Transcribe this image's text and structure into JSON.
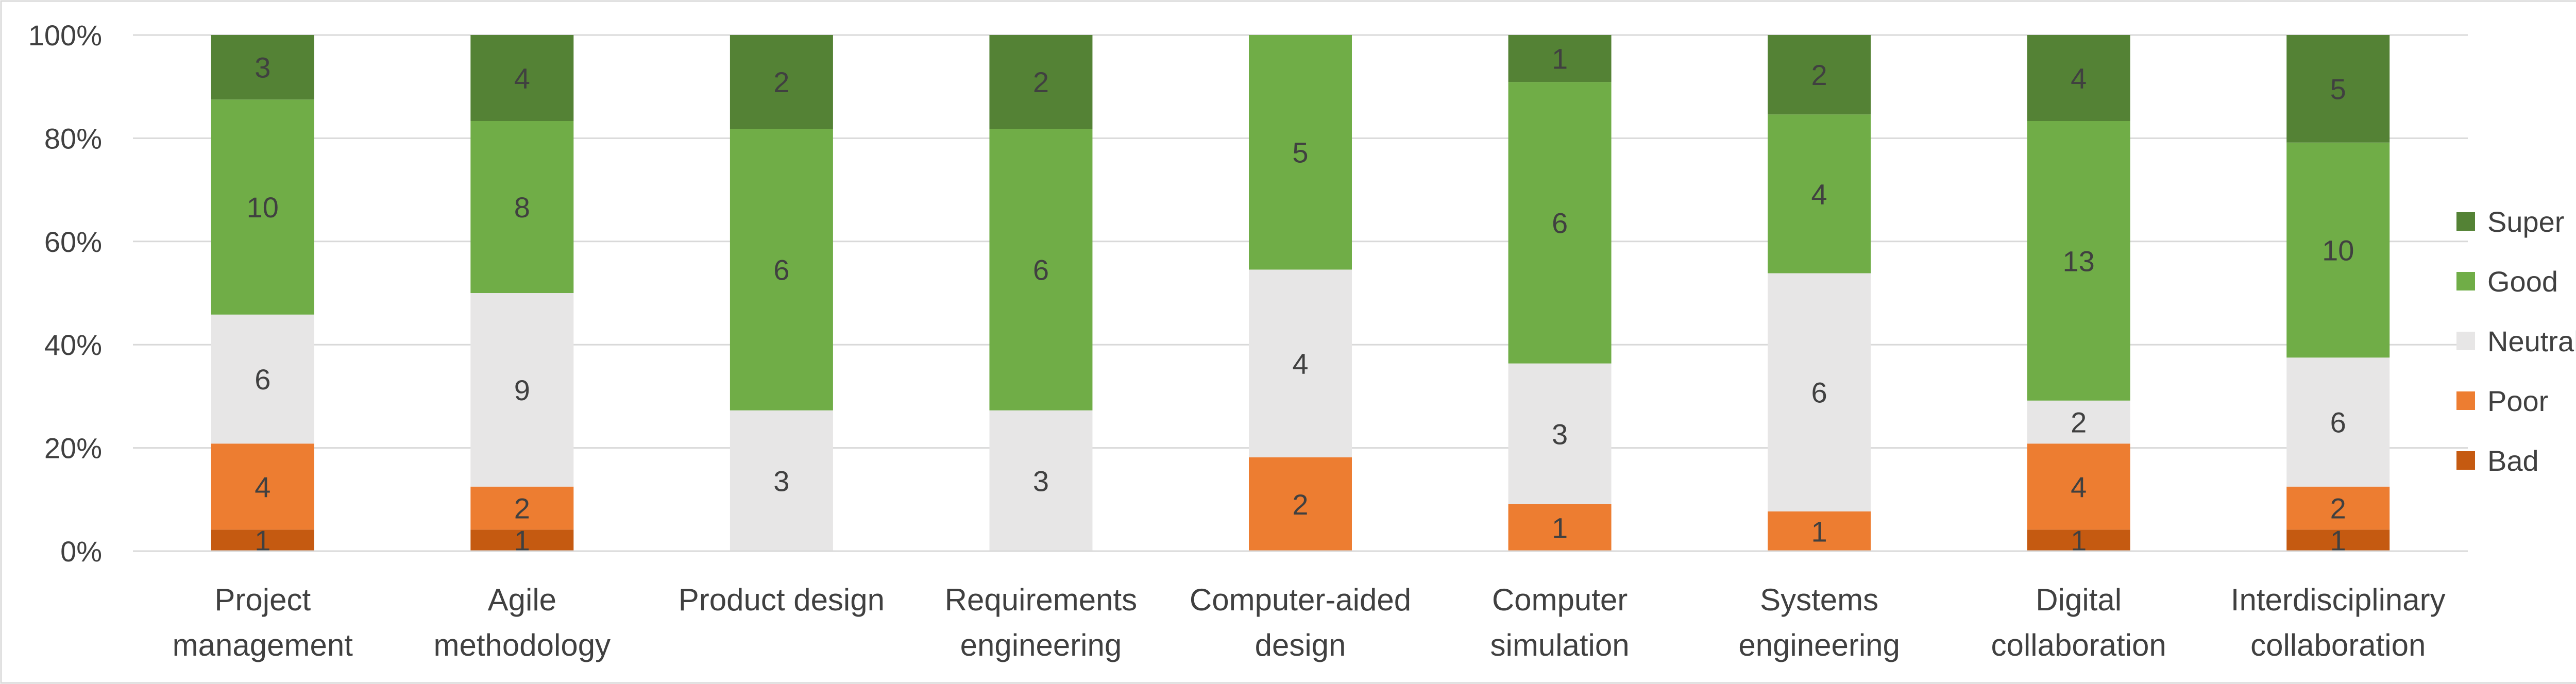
{
  "chart_data": {
    "type": "bar",
    "stacked": "percent",
    "categories": [
      [
        "Project",
        "management"
      ],
      [
        "Agile",
        "methodology"
      ],
      [
        "Product design"
      ],
      [
        "Requirements",
        "engineering"
      ],
      [
        "Computer-aided",
        "design"
      ],
      [
        "Computer",
        "simulation"
      ],
      [
        "Systems",
        "engineering"
      ],
      [
        "Digital",
        "collaboration"
      ],
      [
        "Interdisciplinary",
        "collaboration"
      ]
    ],
    "series": [
      {
        "name": "Bad",
        "color": "#C55A11",
        "values": [
          1,
          1,
          0,
          0,
          0,
          0,
          0,
          1,
          1
        ]
      },
      {
        "name": "Poor",
        "color": "#ED7D31",
        "values": [
          4,
          2,
          0,
          0,
          2,
          1,
          1,
          4,
          2
        ]
      },
      {
        "name": "Neutral",
        "color": "#E7E6E6",
        "values": [
          6,
          9,
          3,
          3,
          4,
          3,
          6,
          2,
          6
        ]
      },
      {
        "name": "Good",
        "color": "#70AD47",
        "values": [
          10,
          8,
          6,
          6,
          5,
          6,
          4,
          13,
          10
        ]
      },
      {
        "name": "Super",
        "color": "#548235",
        "values": [
          3,
          4,
          2,
          2,
          0,
          1,
          2,
          4,
          5
        ]
      }
    ],
    "yticks": [
      "0%",
      "20%",
      "40%",
      "60%",
      "80%",
      "100%"
    ],
    "ylim": [
      0,
      100
    ],
    "grid": true,
    "legend": "right"
  }
}
